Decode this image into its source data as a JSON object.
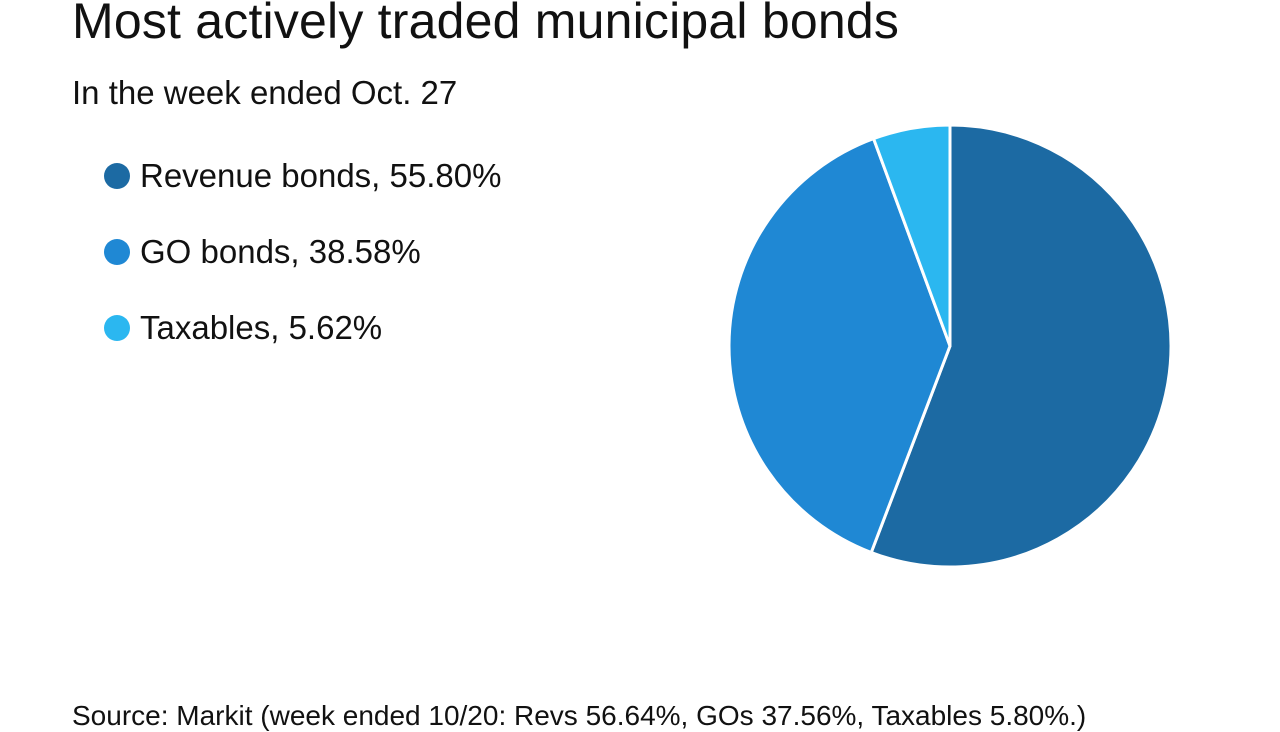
{
  "chart": {
    "title": "Most actively traded municipal bonds",
    "subtitle": "In the week ended Oct. 27",
    "source": "Source: Markit (week ended 10/20: Revs 56.64%, GOs 37.56%, Taxables 5.80%.)"
  },
  "legend": [
    {
      "label": "Revenue bonds, 55.80%",
      "color": "#1c6aa3"
    },
    {
      "label": "GO bonds, 38.58%",
      "color": "#1f88d4"
    },
    {
      "label": "Taxables, 5.62%",
      "color": "#2bb7f0"
    }
  ],
  "chart_data": {
    "type": "pie",
    "title": "Most actively traded municipal bonds",
    "subtitle": "In the week ended Oct. 27",
    "slices": [
      {
        "name": "Revenue bonds",
        "value": 55.8,
        "color": "#1c6aa3"
      },
      {
        "name": "GO bonds",
        "value": 38.58,
        "color": "#1f88d4"
      },
      {
        "name": "Taxables",
        "value": 5.62,
        "color": "#2bb7f0"
      }
    ],
    "start_angle": "top",
    "direction": "clockwise",
    "legend_position": "left"
  }
}
